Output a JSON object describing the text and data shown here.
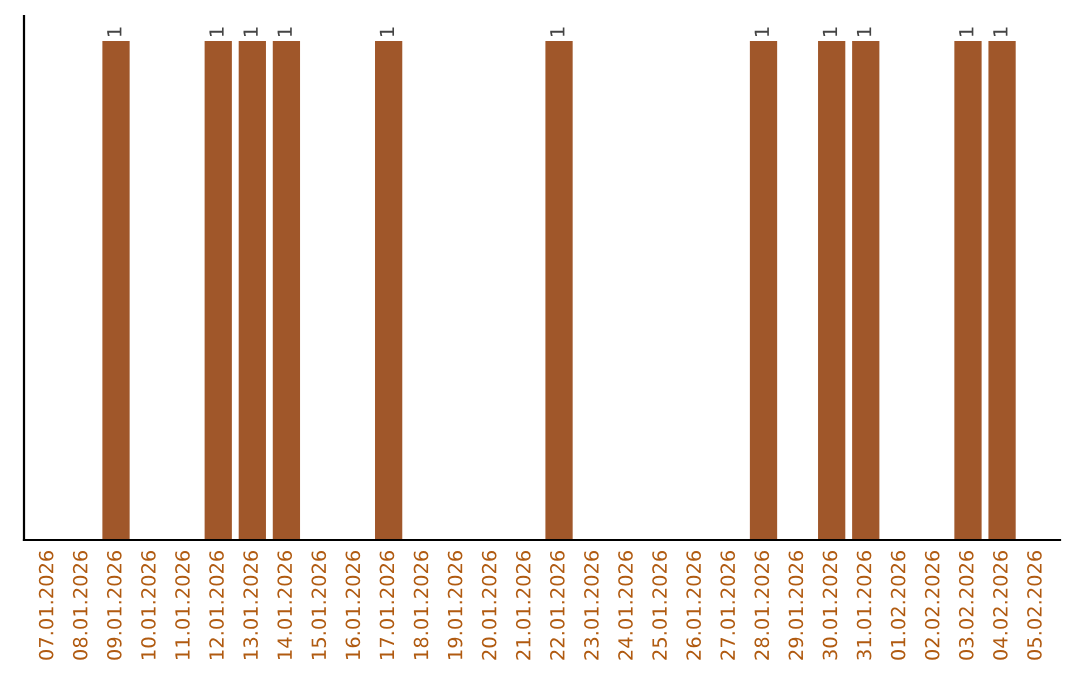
{
  "chart_data": {
    "type": "bar",
    "categories": [
      "07.01.2026",
      "08.01.2026",
      "09.01.2026",
      "10.01.2026",
      "11.01.2026",
      "12.01.2026",
      "13.01.2026",
      "14.01.2026",
      "15.01.2026",
      "16.01.2026",
      "17.01.2026",
      "18.01.2026",
      "19.01.2026",
      "20.01.2026",
      "21.01.2026",
      "22.01.2026",
      "23.01.2026",
      "24.01.2026",
      "25.01.2026",
      "26.01.2026",
      "27.01.2026",
      "28.01.2026",
      "29.01.2026",
      "30.01.2026",
      "31.01.2026",
      "01.02.2026",
      "02.02.2026",
      "03.02.2026",
      "04.02.2026",
      "05.02.2026"
    ],
    "values": [
      0,
      0,
      1,
      0,
      0,
      1,
      1,
      1,
      0,
      0,
      1,
      0,
      0,
      0,
      0,
      1,
      0,
      0,
      0,
      0,
      0,
      1,
      0,
      1,
      1,
      0,
      0,
      1,
      1,
      0
    ],
    "value_labels": [
      null,
      null,
      "1",
      null,
      null,
      "1",
      "1",
      "1",
      null,
      null,
      "1",
      null,
      null,
      null,
      null,
      "1",
      null,
      null,
      null,
      null,
      null,
      "1",
      null,
      "1",
      "1",
      null,
      null,
      "1",
      "1",
      null
    ],
    "color": "#a0572a",
    "tick_labels": "x",
    "grid": false,
    "legend": false
  }
}
